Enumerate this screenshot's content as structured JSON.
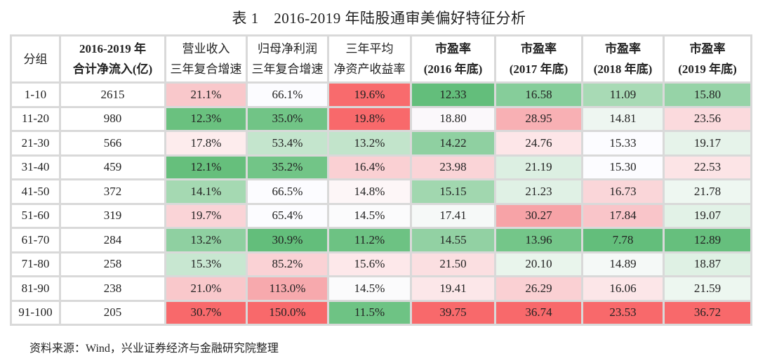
{
  "title": "表 1　2016-2019 年陆股通审美偏好特征分析",
  "headers": [
    {
      "l1": "分组",
      "l2": ""
    },
    {
      "l1": "2016-2019 年",
      "l2": "合计净流入(亿)"
    },
    {
      "l1": "营业收入",
      "l2": "三年复合增速"
    },
    {
      "l1": "归母净利润",
      "l2": "三年复合增速"
    },
    {
      "l1": "三年平均",
      "l2": "净资产收益率"
    },
    {
      "l1": "市盈率",
      "l2": "(2016 年底)"
    },
    {
      "l1": "市盈率",
      "l2": "(2017 年底)"
    },
    {
      "l1": "市盈率",
      "l2": "(2018 年底)"
    },
    {
      "l1": "市盈率",
      "l2": "(2019 年底)"
    }
  ],
  "rows": [
    {
      "group": "1-10",
      "inflow": "2615",
      "cells": [
        {
          "v": "21.1%",
          "bg": "#f9c8cb"
        },
        {
          "v": "66.1%",
          "bg": "#fcfcff"
        },
        {
          "v": "19.6%",
          "bg": "#f86b6d"
        },
        {
          "v": "12.33",
          "bg": "#63be7b"
        },
        {
          "v": "16.58",
          "bg": "#86cd9a"
        },
        {
          "v": "11.09",
          "bg": "#a8dab5"
        },
        {
          "v": "15.80",
          "bg": "#96d3a7"
        }
      ]
    },
    {
      "group": "11-20",
      "inflow": "980",
      "cells": [
        {
          "v": "12.3%",
          "bg": "#6ac17f"
        },
        {
          "v": "35.0%",
          "bg": "#71c486"
        },
        {
          "v": "19.8%",
          "bg": "#f8696b"
        },
        {
          "v": "18.80",
          "bg": "#fbf8fb"
        },
        {
          "v": "28.95",
          "bg": "#f8b0b4"
        },
        {
          "v": "14.81",
          "bg": "#eef6f1"
        },
        {
          "v": "23.56",
          "bg": "#fbdadd"
        }
      ]
    },
    {
      "group": "21-30",
      "inflow": "566",
      "cells": [
        {
          "v": "17.8%",
          "bg": "#fdeced"
        },
        {
          "v": "53.4%",
          "bg": "#c4e5cd"
        },
        {
          "v": "13.2%",
          "bg": "#c2e4cb"
        },
        {
          "v": "14.22",
          "bg": "#8fd0a1"
        },
        {
          "v": "24.76",
          "bg": "#fde6e8"
        },
        {
          "v": "15.33",
          "bg": "#fcfcff"
        },
        {
          "v": "19.17",
          "bg": "#e6f3ea"
        }
      ]
    },
    {
      "group": "31-40",
      "inflow": "459",
      "cells": [
        {
          "v": "12.1%",
          "bg": "#66bf7c"
        },
        {
          "v": "35.2%",
          "bg": "#72c587"
        },
        {
          "v": "16.4%",
          "bg": "#fad0d3"
        },
        {
          "v": "23.98",
          "bg": "#fad4d7"
        },
        {
          "v": "21.19",
          "bg": "#dcefe2"
        },
        {
          "v": "15.30",
          "bg": "#fcfcff"
        },
        {
          "v": "22.53",
          "bg": "#fce4e6"
        }
      ]
    },
    {
      "group": "41-50",
      "inflow": "372",
      "cells": [
        {
          "v": "14.1%",
          "bg": "#a5d9b2"
        },
        {
          "v": "66.5%",
          "bg": "#fcfcff"
        },
        {
          "v": "14.8%",
          "bg": "#fdf6f7"
        },
        {
          "v": "15.15",
          "bg": "#a1d7af"
        },
        {
          "v": "21.23",
          "bg": "#e0f1e5"
        },
        {
          "v": "16.73",
          "bg": "#fad6d9"
        },
        {
          "v": "21.78",
          "bg": "#eef7f1"
        }
      ]
    },
    {
      "group": "51-60",
      "inflow": "319",
      "cells": [
        {
          "v": "19.7%",
          "bg": "#fad4d7"
        },
        {
          "v": "65.4%",
          "bg": "#fcfcff"
        },
        {
          "v": "14.5%",
          "bg": "#fbfbfc"
        },
        {
          "v": "17.41",
          "bg": "#f6f9f8"
        },
        {
          "v": "30.27",
          "bg": "#f7a3a7"
        },
        {
          "v": "17.84",
          "bg": "#f9c5c9"
        },
        {
          "v": "19.07",
          "bg": "#e2f2e7"
        }
      ]
    },
    {
      "group": "61-70",
      "inflow": "284",
      "cells": [
        {
          "v": "13.2%",
          "bg": "#8fd0a1"
        },
        {
          "v": "30.9%",
          "bg": "#63be7b"
        },
        {
          "v": "11.2%",
          "bg": "#6dc283"
        },
        {
          "v": "14.55",
          "bg": "#92d1a3"
        },
        {
          "v": "13.96",
          "bg": "#74c689"
        },
        {
          "v": "7.78",
          "bg": "#63be7b"
        },
        {
          "v": "12.89",
          "bg": "#66bf7d"
        }
      ]
    },
    {
      "group": "71-80",
      "inflow": "258",
      "cells": [
        {
          "v": "15.3%",
          "bg": "#c8e7d1"
        },
        {
          "v": "85.2%",
          "bg": "#fad2d5"
        },
        {
          "v": "15.6%",
          "bg": "#fde8ea"
        },
        {
          "v": "21.50",
          "bg": "#fbdfe1"
        },
        {
          "v": "20.10",
          "bg": "#e9f5ec"
        },
        {
          "v": "14.89",
          "bg": "#f5f9f7"
        },
        {
          "v": "18.87",
          "bg": "#dff1e4"
        }
      ]
    },
    {
      "group": "81-90",
      "inflow": "238",
      "cells": [
        {
          "v": "21.0%",
          "bg": "#f9c8cb"
        },
        {
          "v": "113.0%",
          "bg": "#f7a9ad"
        },
        {
          "v": "14.5%",
          "bg": "#fbfbfc"
        },
        {
          "v": "19.41",
          "bg": "#fce7e9"
        },
        {
          "v": "26.29",
          "bg": "#fad0d3"
        },
        {
          "v": "16.06",
          "bg": "#fce6e8"
        },
        {
          "v": "21.59",
          "bg": "#edf7f0"
        }
      ]
    },
    {
      "group": "91-100",
      "inflow": "205",
      "cells": [
        {
          "v": "30.7%",
          "bg": "#f8696b"
        },
        {
          "v": "150.0%",
          "bg": "#f8696b"
        },
        {
          "v": "11.5%",
          "bg": "#6ec384"
        },
        {
          "v": "39.75",
          "bg": "#f8696b"
        },
        {
          "v": "36.74",
          "bg": "#f8696b"
        },
        {
          "v": "23.53",
          "bg": "#f8696b"
        },
        {
          "v": "36.72",
          "bg": "#f8696b"
        }
      ]
    }
  ],
  "source": "资料来源：Wind，兴业证券经济与金融研究院整理"
}
